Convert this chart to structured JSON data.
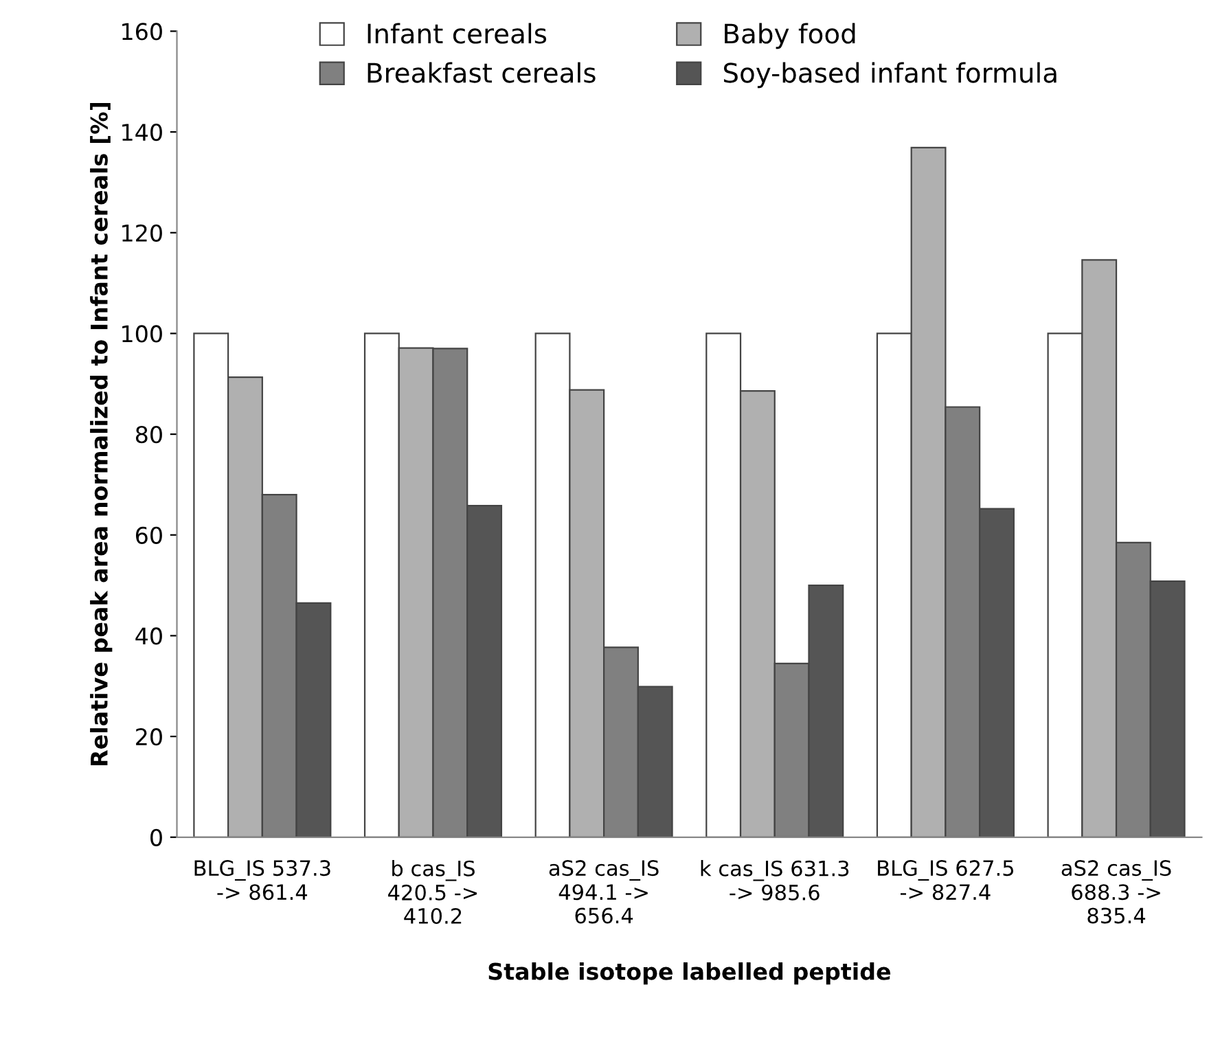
{
  "chart_data": {
    "type": "bar",
    "xlabel": "Stable isotope labelled peptide",
    "ylabel": "Relative peak area normalized to Infant cereals [%]",
    "categories": [
      "BLG_IS 537.3\n-> 861.4",
      "b cas_IS\n420.5 ->\n410.2",
      "aS2 cas_IS\n494.1 ->\n656.4",
      "k cas_IS 631.3\n-> 985.6",
      "BLG_IS 627.5\n-> 827.4",
      "aS2 cas_IS\n688.3 ->\n835.4"
    ],
    "series": [
      {
        "name": "Infant cereals",
        "color": "#ffffff",
        "values": [
          100,
          100,
          100,
          100,
          100,
          100
        ]
      },
      {
        "name": "Baby food",
        "color": "#b0b0b0",
        "values": [
          91.3,
          97.1,
          88.8,
          88.6,
          136.9,
          114.6
        ]
      },
      {
        "name": "Breakfast cereals",
        "color": "#808080",
        "values": [
          68.0,
          97.0,
          37.7,
          34.5,
          85.4,
          58.5
        ]
      },
      {
        "name": "Soy-based infant formula",
        "color": "#555555",
        "values": [
          46.5,
          65.8,
          29.9,
          50.0,
          65.2,
          50.8
        ]
      }
    ],
    "ylim": [
      0,
      160
    ],
    "yticks": [
      0,
      20,
      40,
      60,
      80,
      100,
      120,
      140,
      160
    ],
    "grid": false,
    "legend": "top"
  }
}
